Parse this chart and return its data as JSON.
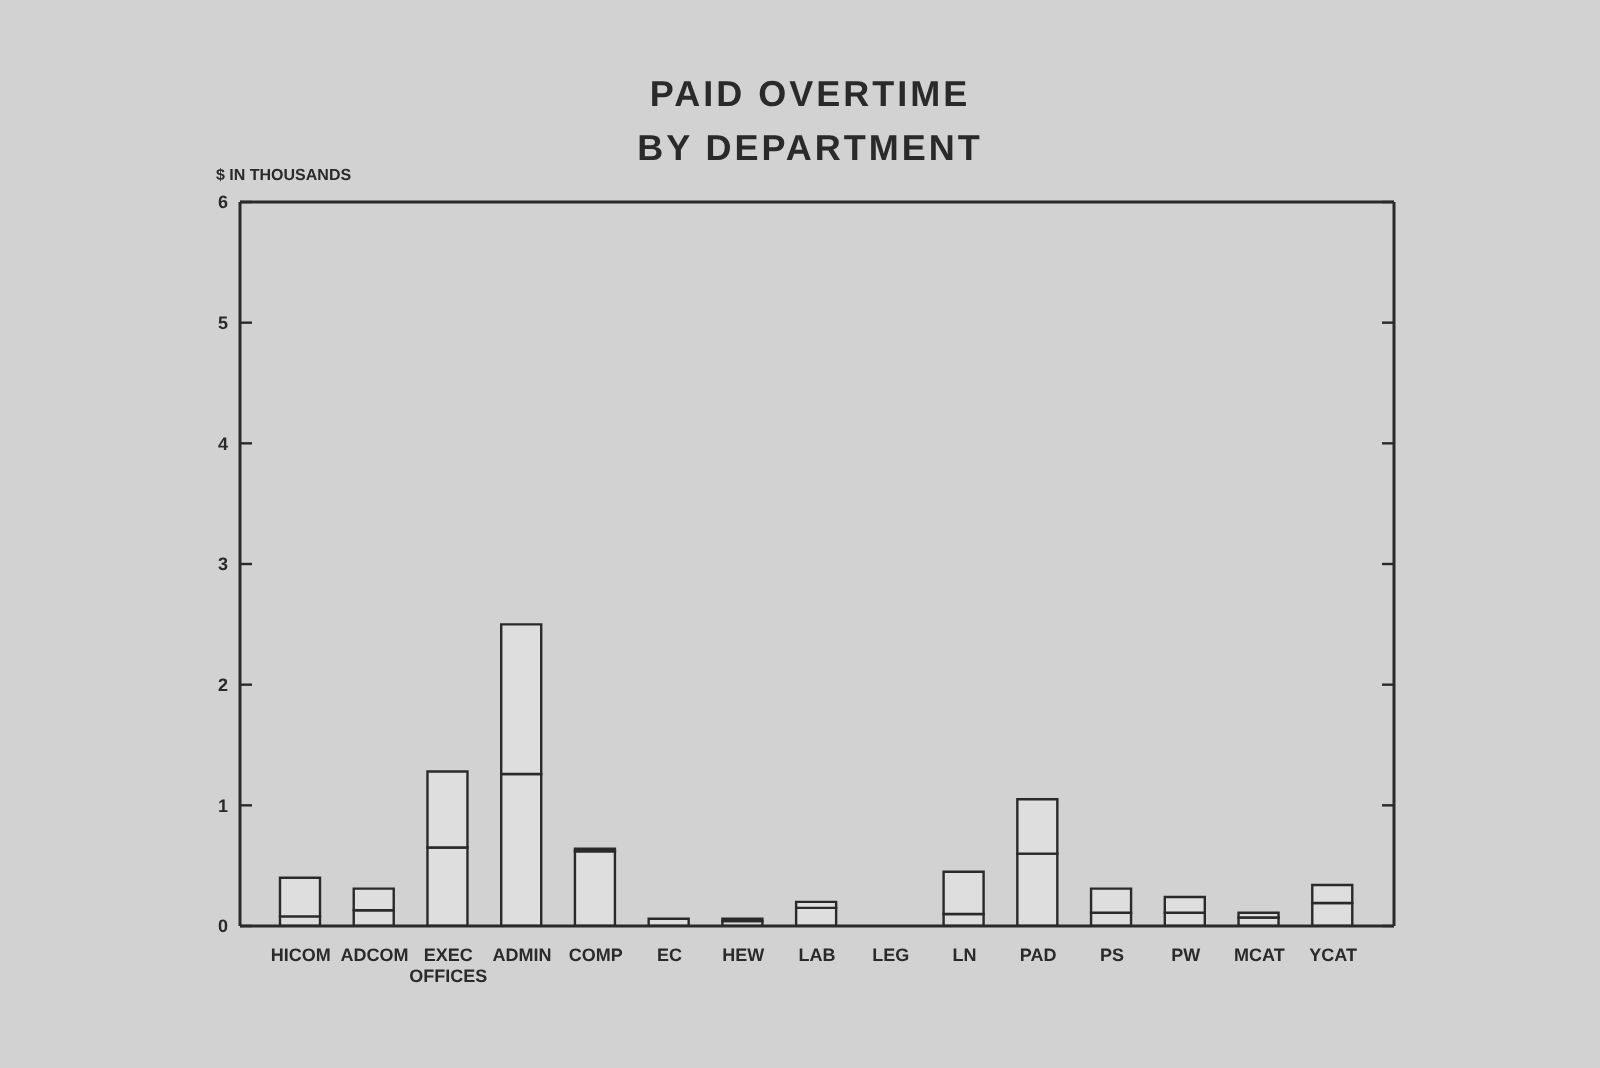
{
  "chart_data": {
    "type": "bar",
    "title": "PAID OVERTIME\nBY DEPARTMENT",
    "ylabel": "$ IN THOUSANDS",
    "categories": [
      "HICOM",
      "ADCOM",
      "EXEC OFFICES",
      "ADMIN",
      "COMP",
      "EC",
      "HEW",
      "LAB",
      "LEG",
      "LN",
      "PAD",
      "PS",
      "PW",
      "MCAT",
      "YCAT"
    ],
    "series": [
      {
        "color": "#dedede",
        "values": [
          0.08,
          0.13,
          0.65,
          1.26,
          0.62,
          0.06,
          0.04,
          0.15,
          null,
          0.1,
          0.6,
          0.11,
          0.11,
          0.07,
          0.19
        ]
      },
      {
        "color": "#dedede",
        "values": [
          0.32,
          0.18,
          0.63,
          1.24,
          0.02,
          null,
          0.02,
          0.05,
          null,
          0.35,
          0.45,
          0.2,
          0.13,
          0.04,
          0.15
        ]
      }
    ],
    "stacked": true,
    "ylim": [
      0,
      6
    ],
    "yticks": [
      0,
      1,
      2,
      3,
      4,
      5,
      6
    ],
    "grid": false,
    "legend": false
  }
}
